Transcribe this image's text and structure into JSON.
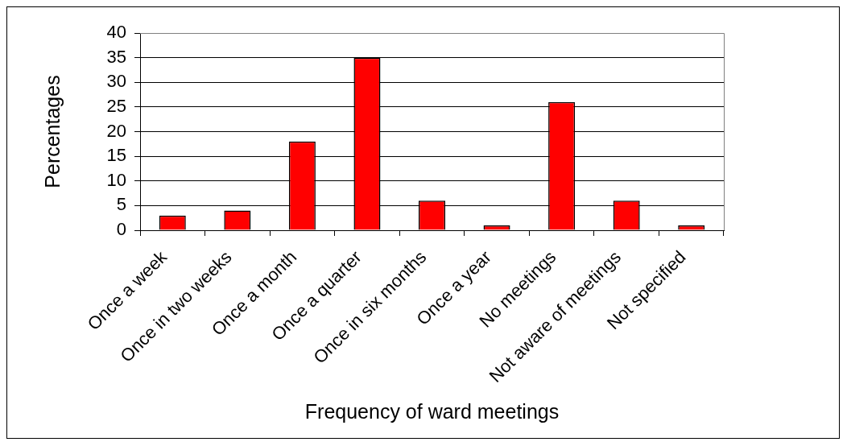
{
  "chart_data": {
    "type": "bar",
    "xlabel": "Frequency of ward meetings",
    "ylabel": "Percentages",
    "categories": [
      "Once a week",
      "Once in two weeks",
      "Once a month",
      "Once a quarter",
      "Once in six months",
      "Once a year",
      "No meetings",
      "Not aware of meetings",
      "Not specified"
    ],
    "values": [
      3,
      4,
      18,
      35,
      6,
      1,
      26,
      6,
      1
    ],
    "color": "#ff0000",
    "ylim": [
      0,
      40
    ],
    "yticks": [
      0,
      5,
      10,
      15,
      20,
      25,
      30,
      35,
      40
    ],
    "grid": "y"
  }
}
